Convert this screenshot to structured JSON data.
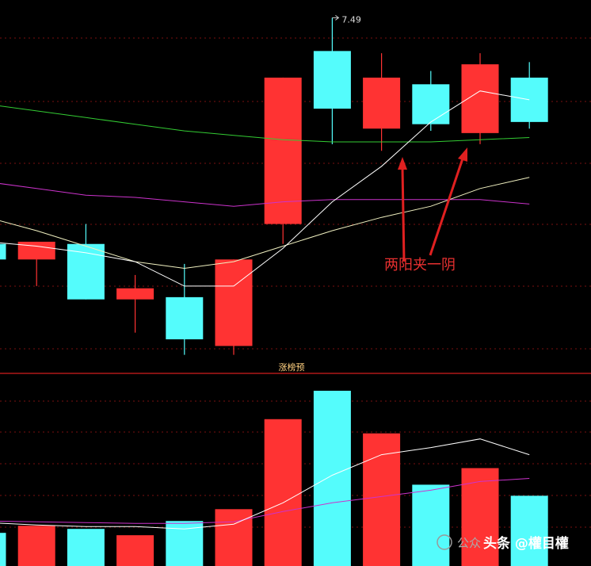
{
  "chart_data": [
    {
      "type": "candlestick",
      "categories": [
        null,
        null,
        null,
        null,
        null,
        null,
        null,
        null,
        null,
        null,
        null,
        null
      ],
      "open": [
        6.47,
        6.4,
        6.47,
        6.22,
        6.23,
        6.01,
        6.56,
        7.34,
        6.99,
        7.19,
        6.97,
        7.22
      ],
      "high": [
        6.47,
        6.48,
        6.56,
        6.33,
        6.38,
        6.4,
        7.22,
        7.49,
        7.33,
        7.25,
        7.33,
        7.29
      ],
      "low": [
        6.4,
        6.28,
        6.22,
        6.07,
        5.97,
        5.97,
        6.47,
        6.92,
        6.89,
        6.98,
        6.92,
        6.99
      ],
      "close": [
        6.4,
        6.48,
        6.22,
        6.27,
        6.04,
        6.4,
        7.22,
        7.08,
        7.22,
        7.01,
        7.28,
        7.02
      ],
      "up_color": "#ff3333",
      "down_color": "#54fcfc",
      "series": [
        {
          "color": "#33cc33",
          "values": [
            7.1,
            7.07,
            7.04,
            7.01,
            6.98,
            6.96,
            6.94,
            6.93,
            6.93,
            6.93,
            6.94,
            6.95
          ]
        },
        {
          "color": "#cc33cc",
          "values": [
            6.75,
            6.72,
            6.69,
            6.68,
            6.66,
            6.64,
            6.66,
            6.67,
            6.67,
            6.67,
            6.67,
            6.65
          ]
        },
        {
          "color": "#f0f0c0",
          "values": [
            6.59,
            6.53,
            6.46,
            6.39,
            6.36,
            6.39,
            6.46,
            6.53,
            6.59,
            6.64,
            6.72,
            6.77
          ]
        },
        {
          "color": "#ffffff",
          "values": [
            6.48,
            6.46,
            6.43,
            6.39,
            6.28,
            6.28,
            6.45,
            6.66,
            6.82,
            7.02,
            7.16,
            7.12
          ]
        }
      ],
      "ylim": [
        5.89,
        7.57
      ],
      "annotation": "两阳夹一阴",
      "grid": true
    },
    {
      "type": "bar",
      "title": "涨榜预",
      "categories": [
        null,
        null,
        null,
        null,
        null,
        null,
        null,
        null,
        null,
        null,
        null,
        null
      ],
      "values": [
        42,
        51,
        47,
        39,
        57,
        72,
        186,
        222,
        168,
        103,
        124,
        89
      ],
      "colors": [
        "#54fcfc",
        "#ff3333",
        "#54fcfc",
        "#ff3333",
        "#54fcfc",
        "#ff3333",
        "#ff3333",
        "#54fcfc",
        "#ff3333",
        "#54fcfc",
        "#ff3333",
        "#54fcfc"
      ],
      "series": [
        {
          "color": "#cc33cc",
          "values": [
            57,
            56,
            55,
            54,
            54,
            56,
            69,
            80,
            88,
            96,
            107,
            111
          ]
        },
        {
          "color": "#ffffff",
          "values": [
            55,
            52,
            50,
            50,
            47,
            53,
            80,
            115,
            141,
            150,
            161,
            141
          ]
        }
      ],
      "ylim": [
        0,
        240
      ],
      "grid": true
    }
  ],
  "watermark": {
    "account": "公众",
    "text": "头条 @權目權"
  }
}
